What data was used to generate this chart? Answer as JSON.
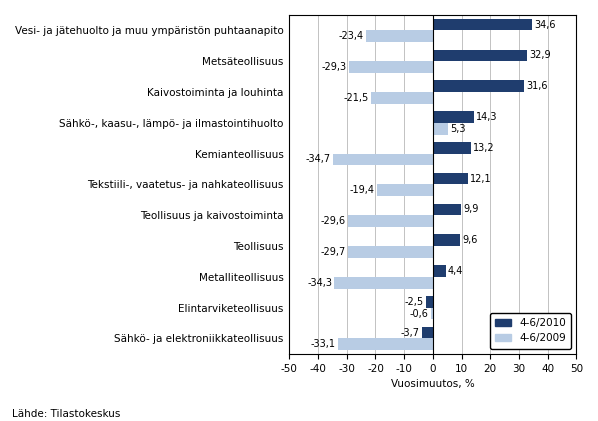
{
  "categories": [
    "Vesi- ja jätehuolto ja muu ympäristön puhtaanapito",
    "Metsäteollisuus",
    "Kaivostoiminta ja louhinta",
    "Sähkö-, kaasu-, lämpö- ja ilmastointihuolto",
    "Kemianteollisuus",
    "Tekstiili-, vaatetus- ja nahkateollisuus",
    "Teollisuus ja kaivostoiminta",
    "Teollisuus",
    "Metalliteollisuus",
    "Elintarviketeollisuus",
    "Sähkö- ja elektroniikkateollisuus"
  ],
  "values_2010": [
    34.6,
    32.9,
    31.6,
    14.3,
    13.2,
    12.1,
    9.9,
    9.6,
    4.4,
    -2.5,
    -3.7
  ],
  "values_2009": [
    -23.4,
    -29.3,
    -21.5,
    5.3,
    -34.7,
    -19.4,
    -29.6,
    -29.7,
    -34.3,
    -0.6,
    -33.1
  ],
  "color_2010": "#1F3D6E",
  "color_2009": "#B8CCE4",
  "bar_height": 0.38,
  "xlim": [
    -50,
    50
  ],
  "xticks": [
    -50,
    -40,
    -30,
    -20,
    -10,
    0,
    10,
    20,
    30,
    40,
    50
  ],
  "xlabel": "Vuosimuutos, %",
  "legend_2010": "4-6/2010",
  "legend_2009": "4-6/2009",
  "source": "Lähde: Tilastokeskus",
  "label_fontsize": 7,
  "axis_fontsize": 7.5,
  "source_fontsize": 7.5,
  "ylabel_fontsize": 7.5
}
